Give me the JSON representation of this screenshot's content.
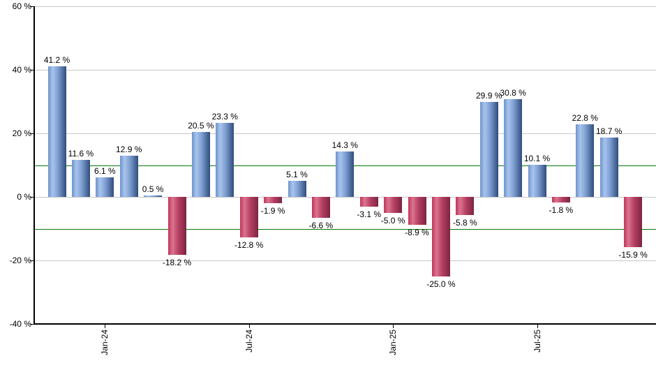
{
  "chart_data": {
    "type": "bar",
    "title": "",
    "xlabel": "",
    "ylabel": "",
    "unit": "%",
    "values": [
      41.2,
      11.6,
      6.1,
      12.9,
      0.5,
      -18.2,
      20.5,
      23.3,
      -12.8,
      -1.9,
      5.1,
      -6.6,
      14.3,
      -3.1,
      -5.0,
      -8.9,
      -25.0,
      -5.8,
      29.9,
      30.8,
      10.1,
      -1.8,
      22.8,
      18.7,
      -15.9
    ],
    "bar_labels": [
      "41.2 %",
      "11.6 %",
      "6.1 %",
      "12.9 %",
      "0.5 %",
      "-18.2 %",
      "20.5 %",
      "23.3 %",
      "-12.8 %",
      "-1.9 %",
      "5.1 %",
      "-6.6 %",
      "14.3 %",
      "-3.1 %",
      "-5.0 %",
      "-8.9 %",
      "-25.0 %",
      "-5.8 %",
      "29.9 %",
      "30.8 %",
      "10.1 %",
      "-1.8 %",
      "22.8 %",
      "18.7 %",
      "-15.9 %"
    ],
    "x_ticks": [
      {
        "label": "Jan-24",
        "bar_index": 2
      },
      {
        "label": "Jul-24",
        "bar_index": 8
      },
      {
        "label": "Jan-25",
        "bar_index": 14
      },
      {
        "label": "Jul-25",
        "bar_index": 20
      }
    ],
    "y_ticks": [
      {
        "label": "60 %",
        "value": 60
      },
      {
        "label": "40 %",
        "value": 40
      },
      {
        "label": "20 %",
        "value": 20
      },
      {
        "label": "0 %",
        "value": 0
      },
      {
        "label": "-20 %",
        "value": -20
      },
      {
        "label": "-40 %",
        "value": -40
      }
    ],
    "ylim": [
      -40,
      60
    ],
    "gridline_values": [
      60,
      40,
      20,
      0,
      -20
    ],
    "reference_lines": [
      {
        "value": 10
      },
      {
        "value": -10
      }
    ],
    "grid": true,
    "legend": "none",
    "colors": {
      "positive_bar_gradient": [
        "#6c94cc",
        "#a9c4ec",
        "#2f4d7c"
      ],
      "negative_bar_gradient": [
        "#c23459",
        "#d9758f",
        "#7b2540"
      ],
      "reference_line": "#067806",
      "gridline": "#c8c8c8",
      "axis": "#000000",
      "label_text": "#000000"
    }
  }
}
